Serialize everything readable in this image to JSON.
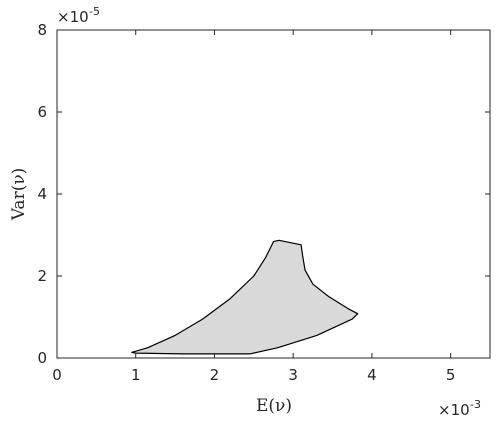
{
  "chart_data": {
    "type": "area",
    "xlabel": "E(ν)",
    "ylabel": "Var(ν)",
    "x_multiplier": {
      "base": "×10",
      "exponent": "-3"
    },
    "y_multiplier": {
      "base": "×10",
      "exponent": "-5"
    },
    "xlim": [
      0,
      5.5
    ],
    "ylim": [
      0,
      8
    ],
    "x_ticks": [
      0,
      1,
      2,
      3,
      4,
      5
    ],
    "y_ticks": [
      0,
      2,
      4,
      6,
      8
    ],
    "x_tick_labels": [
      "0",
      "1",
      "2",
      "3",
      "4",
      "5"
    ],
    "y_tick_labels": [
      "0",
      "2",
      "4",
      "6",
      "8"
    ],
    "grid": false,
    "fill_color": "#d9d9d9",
    "edge_color": "#000000",
    "region": [
      {
        "x": 0.95,
        "y": 0.14
      },
      {
        "x": 1.15,
        "y": 0.25
      },
      {
        "x": 1.5,
        "y": 0.55
      },
      {
        "x": 1.85,
        "y": 0.95
      },
      {
        "x": 2.2,
        "y": 1.45
      },
      {
        "x": 2.5,
        "y": 2.0
      },
      {
        "x": 2.65,
        "y": 2.45
      },
      {
        "x": 2.75,
        "y": 2.84
      },
      {
        "x": 2.82,
        "y": 2.87
      },
      {
        "x": 3.1,
        "y": 2.76
      },
      {
        "x": 3.12,
        "y": 2.5
      },
      {
        "x": 3.15,
        "y": 2.15
      },
      {
        "x": 3.25,
        "y": 1.8
      },
      {
        "x": 3.45,
        "y": 1.5
      },
      {
        "x": 3.7,
        "y": 1.2
      },
      {
        "x": 3.82,
        "y": 1.08
      },
      {
        "x": 3.75,
        "y": 0.95
      },
      {
        "x": 3.3,
        "y": 0.55
      },
      {
        "x": 2.8,
        "y": 0.25
      },
      {
        "x": 2.45,
        "y": 0.1
      },
      {
        "x": 1.6,
        "y": 0.1
      },
      {
        "x": 1.0,
        "y": 0.12
      }
    ]
  }
}
